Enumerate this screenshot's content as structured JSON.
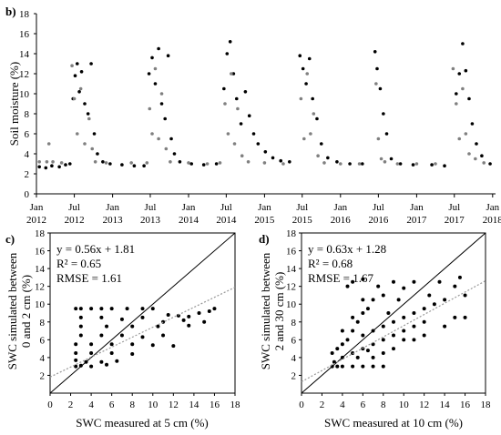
{
  "chart_data": [
    {
      "panel_label": "b)",
      "type": "scatter",
      "ylabel": "Soil moisture (%)",
      "ylim": [
        0,
        18
      ],
      "yticks": [
        0,
        2,
        4,
        6,
        8,
        10,
        12,
        14,
        16,
        18
      ],
      "xlim": [
        "2012-01-01",
        "2018-01-15"
      ],
      "xticks": [
        {
          "date": "2012-01-01",
          "line1": "Jan",
          "line2": "2012"
        },
        {
          "date": "2012-07-01",
          "line1": "Jul",
          "line2": "2012"
        },
        {
          "date": "2013-01-01",
          "line1": "Jan",
          "line2": "2013"
        },
        {
          "date": "2013-07-01",
          "line1": "Jul",
          "line2": "2013"
        },
        {
          "date": "2014-01-01",
          "line1": "Jan",
          "line2": "2014"
        },
        {
          "date": "2014-07-01",
          "line1": "Jul",
          "line2": "2014"
        },
        {
          "date": "2015-01-01",
          "line1": "Jan",
          "line2": "2015"
        },
        {
          "date": "2015-07-01",
          "line1": "Jul",
          "line2": "2015"
        },
        {
          "date": "2016-01-01",
          "line1": "Jan",
          "line2": "2016"
        },
        {
          "date": "2016-07-01",
          "line1": "Jul",
          "line2": "2016"
        },
        {
          "date": "2017-01-01",
          "line1": "Jan",
          "line2": "2017"
        },
        {
          "date": "2017-07-01",
          "line1": "Jul",
          "line2": "2017"
        },
        {
          "date": "2018-01-01",
          "line1": "Jan",
          "line2": "2018"
        }
      ],
      "series": [
        {
          "color": "#000000",
          "points": [
            [
              "2012-01-15",
              2.7
            ],
            [
              "2012-02-15",
              2.6
            ],
            [
              "2012-03-15",
              2.8
            ],
            [
              "2012-04-20",
              2.7
            ],
            [
              "2012-05-20",
              2.9
            ],
            [
              "2012-06-10",
              3.0
            ],
            [
              "2012-06-25",
              9.5
            ],
            [
              "2012-07-05",
              11.8
            ],
            [
              "2012-07-15",
              13.0
            ],
            [
              "2012-07-25",
              10.2
            ],
            [
              "2012-08-05",
              12.2
            ],
            [
              "2012-08-20",
              9.0
            ],
            [
              "2012-09-05",
              8.0
            ],
            [
              "2012-09-20",
              13.0
            ],
            [
              "2012-10-05",
              6.0
            ],
            [
              "2012-10-20",
              4.0
            ],
            [
              "2012-11-15",
              3.2
            ],
            [
              "2012-12-20",
              3.0
            ],
            [
              "2013-02-15",
              2.9
            ],
            [
              "2013-04-15",
              2.8
            ],
            [
              "2013-06-01",
              2.8
            ],
            [
              "2013-06-25",
              12.0
            ],
            [
              "2013-07-10",
              13.6
            ],
            [
              "2013-07-25",
              11.0
            ],
            [
              "2013-08-10",
              14.5
            ],
            [
              "2013-08-25",
              9.0
            ],
            [
              "2013-09-10",
              7.5
            ],
            [
              "2013-09-25",
              13.8
            ],
            [
              "2013-10-10",
              5.5
            ],
            [
              "2013-10-25",
              4.0
            ],
            [
              "2013-11-20",
              3.2
            ],
            [
              "2014-01-15",
              3.0
            ],
            [
              "2014-03-15",
              2.9
            ],
            [
              "2014-05-15",
              3.0
            ],
            [
              "2014-06-20",
              10.5
            ],
            [
              "2014-07-05",
              14.0
            ],
            [
              "2014-07-20",
              15.2
            ],
            [
              "2014-08-05",
              12.0
            ],
            [
              "2014-08-20",
              9.5
            ],
            [
              "2014-09-10",
              7.0
            ],
            [
              "2014-10-01",
              10.2
            ],
            [
              "2014-10-20",
              7.8
            ],
            [
              "2014-11-10",
              6.0
            ],
            [
              "2014-12-01",
              5.0
            ],
            [
              "2015-01-05",
              4.2
            ],
            [
              "2015-02-10",
              3.6
            ],
            [
              "2015-03-20",
              3.3
            ],
            [
              "2015-05-01",
              3.2
            ],
            [
              "2015-06-20",
              13.8
            ],
            [
              "2015-07-05",
              12.5
            ],
            [
              "2015-07-20",
              11.0
            ],
            [
              "2015-08-05",
              13.5
            ],
            [
              "2015-08-20",
              9.5
            ],
            [
              "2015-09-10",
              7.5
            ],
            [
              "2015-10-01",
              5.0
            ],
            [
              "2015-11-01",
              3.6
            ],
            [
              "2015-12-15",
              3.2
            ],
            [
              "2016-02-15",
              3.0
            ],
            [
              "2016-04-15",
              3.0
            ],
            [
              "2016-06-15",
              14.2
            ],
            [
              "2016-06-25",
              12.5
            ],
            [
              "2016-07-10",
              10.5
            ],
            [
              "2016-07-25",
              8.0
            ],
            [
              "2016-08-10",
              6.0
            ],
            [
              "2016-09-01",
              3.5
            ],
            [
              "2016-10-15",
              3.0
            ],
            [
              "2016-12-15",
              2.9
            ],
            [
              "2017-03-15",
              2.9
            ],
            [
              "2017-05-15",
              2.8
            ],
            [
              "2017-07-10",
              10.0
            ],
            [
              "2017-07-25",
              12.0
            ],
            [
              "2017-08-10",
              15.0
            ],
            [
              "2017-08-25",
              12.3
            ],
            [
              "2017-09-10",
              9.5
            ],
            [
              "2017-09-25",
              7.0
            ],
            [
              "2017-10-15",
              5.0
            ],
            [
              "2017-11-10",
              3.8
            ],
            [
              "2017-12-20",
              3.0
            ]
          ]
        },
        {
          "color": "#808080",
          "points": [
            [
              "2012-01-15",
              3.2
            ],
            [
              "2012-02-20",
              3.2
            ],
            [
              "2012-03-01",
              5.0
            ],
            [
              "2012-03-20",
              3.2
            ],
            [
              "2012-05-01",
              3.1
            ],
            [
              "2012-06-20",
              12.8
            ],
            [
              "2012-07-01",
              9.5
            ],
            [
              "2012-07-15",
              6.0
            ],
            [
              "2012-08-01",
              10.5
            ],
            [
              "2012-08-20",
              5.0
            ],
            [
              "2012-09-10",
              7.5
            ],
            [
              "2012-09-25",
              4.5
            ],
            [
              "2012-10-10",
              3.2
            ],
            [
              "2012-12-01",
              3.1
            ],
            [
              "2013-04-01",
              3.1
            ],
            [
              "2013-06-15",
              3.1
            ],
            [
              "2013-06-28",
              8.5
            ],
            [
              "2013-07-10",
              6.0
            ],
            [
              "2013-07-25",
              12.5
            ],
            [
              "2013-08-10",
              5.5
            ],
            [
              "2013-08-25",
              10.0
            ],
            [
              "2013-09-15",
              4.5
            ],
            [
              "2013-10-05",
              3.2
            ],
            [
              "2014-01-01",
              3.1
            ],
            [
              "2014-04-01",
              3.0
            ],
            [
              "2014-06-01",
              3.1
            ],
            [
              "2014-06-25",
              9.0
            ],
            [
              "2014-07-10",
              6.0
            ],
            [
              "2014-07-25",
              12.0
            ],
            [
              "2014-08-10",
              5.0
            ],
            [
              "2014-08-25",
              8.5
            ],
            [
              "2014-09-15",
              3.8
            ],
            [
              "2014-10-15",
              3.2
            ],
            [
              "2015-01-01",
              3.1
            ],
            [
              "2015-04-01",
              3.0
            ],
            [
              "2015-06-25",
              9.5
            ],
            [
              "2015-07-10",
              5.5
            ],
            [
              "2015-07-25",
              12.0
            ],
            [
              "2015-08-10",
              6.0
            ],
            [
              "2015-08-25",
              8.0
            ],
            [
              "2015-09-15",
              3.8
            ],
            [
              "2015-10-15",
              3.1
            ],
            [
              "2016-01-01",
              3.0
            ],
            [
              "2016-04-01",
              3.0
            ],
            [
              "2016-06-20",
              11.0
            ],
            [
              "2016-07-01",
              5.5
            ],
            [
              "2016-07-15",
              3.5
            ],
            [
              "2016-08-01",
              3.2
            ],
            [
              "2016-10-01",
              3.0
            ],
            [
              "2017-01-01",
              3.0
            ],
            [
              "2017-04-01",
              3.0
            ],
            [
              "2017-06-25",
              12.5
            ],
            [
              "2017-07-10",
              9.0
            ],
            [
              "2017-07-25",
              5.5
            ],
            [
              "2017-08-10",
              10.5
            ],
            [
              "2017-08-25",
              6.0
            ],
            [
              "2017-09-10",
              4.0
            ],
            [
              "2017-10-10",
              3.5
            ],
            [
              "2017-11-20",
              3.1
            ]
          ]
        }
      ]
    },
    {
      "panel_label": "c)",
      "type": "scatter",
      "xlabel": "SWC measured at 5 cm (%)",
      "ylabel_lines": [
        "SWC simulated between",
        "0 and 2 cm (%)"
      ],
      "xlim": [
        0,
        18
      ],
      "ylim": [
        0,
        18
      ],
      "xticks": [
        0,
        2,
        4,
        6,
        8,
        10,
        12,
        14,
        16,
        18
      ],
      "yticks": [
        2,
        4,
        6,
        8,
        10,
        12,
        14,
        16,
        18
      ],
      "stats": [
        "y = 0.56x + 1.81",
        "R² = 0.65",
        "RMSE = 1.61"
      ],
      "regression": {
        "slope": 0.56,
        "intercept": 1.81
      },
      "one_to_one_line": true,
      "points": [
        [
          2.5,
          9.5
        ],
        [
          3.0,
          9.5
        ],
        [
          4.0,
          9.5
        ],
        [
          5.0,
          9.5
        ],
        [
          6.0,
          9.5
        ],
        [
          7.5,
          9.5
        ],
        [
          9.0,
          9.5
        ],
        [
          10.0,
          9.5
        ],
        [
          11.5,
          8.8
        ],
        [
          12.5,
          8.7
        ],
        [
          13.5,
          8.6
        ],
        [
          14.5,
          9.0
        ],
        [
          15.5,
          9.2
        ],
        [
          16.0,
          9.5
        ],
        [
          3.0,
          8.5
        ],
        [
          5.0,
          8.5
        ],
        [
          7.0,
          8.3
        ],
        [
          9.0,
          8.5
        ],
        [
          11.0,
          8.0
        ],
        [
          13.0,
          8.2
        ],
        [
          15.0,
          8.0
        ],
        [
          3.0,
          7.5
        ],
        [
          5.5,
          7.5
        ],
        [
          8.0,
          7.5
        ],
        [
          10.5,
          7.5
        ],
        [
          13.5,
          7.6
        ],
        [
          3.0,
          6.5
        ],
        [
          5.0,
          6.5
        ],
        [
          7.0,
          6.5
        ],
        [
          9.0,
          6.3
        ],
        [
          11.0,
          6.5
        ],
        [
          2.5,
          5.5
        ],
        [
          4.0,
          5.5
        ],
        [
          6.0,
          5.5
        ],
        [
          8.0,
          5.5
        ],
        [
          10.0,
          5.4
        ],
        [
          12.0,
          5.3
        ],
        [
          2.5,
          4.5
        ],
        [
          4.0,
          4.5
        ],
        [
          6.0,
          4.5
        ],
        [
          8.0,
          4.4
        ],
        [
          2.5,
          3.7
        ],
        [
          3.5,
          3.5
        ],
        [
          5.0,
          3.5
        ],
        [
          6.5,
          3.6
        ],
        [
          2.5,
          3.0
        ],
        [
          3.0,
          3.1
        ],
        [
          4.0,
          3.0
        ],
        [
          5.5,
          3.2
        ]
      ]
    },
    {
      "panel_label": "d)",
      "type": "scatter",
      "xlabel": "SWC measured at 10 cm (%)",
      "ylabel_lines": [
        "SWC simulated between",
        "2 and 30 cm (%)"
      ],
      "xlim": [
        0,
        18
      ],
      "ylim": [
        0,
        18
      ],
      "xticks": [
        0,
        2,
        4,
        6,
        8,
        10,
        12,
        14,
        16,
        18
      ],
      "yticks": [
        2,
        4,
        6,
        8,
        10,
        12,
        14,
        16,
        18
      ],
      "stats": [
        "y = 0.63x + 1.28",
        "R² = 0.68",
        "RMSE = 1.67"
      ],
      "regression": {
        "slope": 0.63,
        "intercept": 1.28
      },
      "one_to_one_line": true,
      "points": [
        [
          3.0,
          3.0
        ],
        [
          3.5,
          3.0
        ],
        [
          4.0,
          3.0
        ],
        [
          5.0,
          3.0
        ],
        [
          6.0,
          3.0
        ],
        [
          7.0,
          3.0
        ],
        [
          8.0,
          3.0
        ],
        [
          3.2,
          3.5
        ],
        [
          3.5,
          5.0
        ],
        [
          4.0,
          5.5
        ],
        [
          4.5,
          6.0
        ],
        [
          5.0,
          7.0
        ],
        [
          5.5,
          8.0
        ],
        [
          6.0,
          9.0
        ],
        [
          6.5,
          9.5
        ],
        [
          7.0,
          10.5
        ],
        [
          4.5,
          12.0
        ],
        [
          5.0,
          12.5
        ],
        [
          6.0,
          12.8
        ],
        [
          7.5,
          12.0
        ],
        [
          8.0,
          11.0
        ],
        [
          9.0,
          12.5
        ],
        [
          10.0,
          11.8
        ],
        [
          11.0,
          12.5
        ],
        [
          5.0,
          4.5
        ],
        [
          6.0,
          5.0
        ],
        [
          7.0,
          5.5
        ],
        [
          8.0,
          6.0
        ],
        [
          9.0,
          6.5
        ],
        [
          10.0,
          7.0
        ],
        [
          11.0,
          7.5
        ],
        [
          12.0,
          8.0
        ],
        [
          6.0,
          6.5
        ],
        [
          7.0,
          7.0
        ],
        [
          8.0,
          7.5
        ],
        [
          9.0,
          8.0
        ],
        [
          10.0,
          8.5
        ],
        [
          11.0,
          9.0
        ],
        [
          12.0,
          9.5
        ],
        [
          13.0,
          10.0
        ],
        [
          7.0,
          4.0
        ],
        [
          8.0,
          4.5
        ],
        [
          9.0,
          5.0
        ],
        [
          10.0,
          6.0
        ],
        [
          11.0,
          6.0
        ],
        [
          12.0,
          6.5
        ],
        [
          14.0,
          10.5
        ],
        [
          15.0,
          12.0
        ],
        [
          15.5,
          13.0
        ],
        [
          16.0,
          11.0
        ],
        [
          14.0,
          7.5
        ],
        [
          15.0,
          8.5
        ],
        [
          16.0,
          8.5
        ],
        [
          3.0,
          4.5
        ],
        [
          4.0,
          4.0
        ],
        [
          5.5,
          4.0
        ],
        [
          6.5,
          4.8
        ],
        [
          4.0,
          7.0
        ],
        [
          5.0,
          8.5
        ],
        [
          6.0,
          10.5
        ],
        [
          8.5,
          9.0
        ],
        [
          9.5,
          10.5
        ],
        [
          12.5,
          11.0
        ],
        [
          13.5,
          12.5
        ]
      ]
    }
  ]
}
